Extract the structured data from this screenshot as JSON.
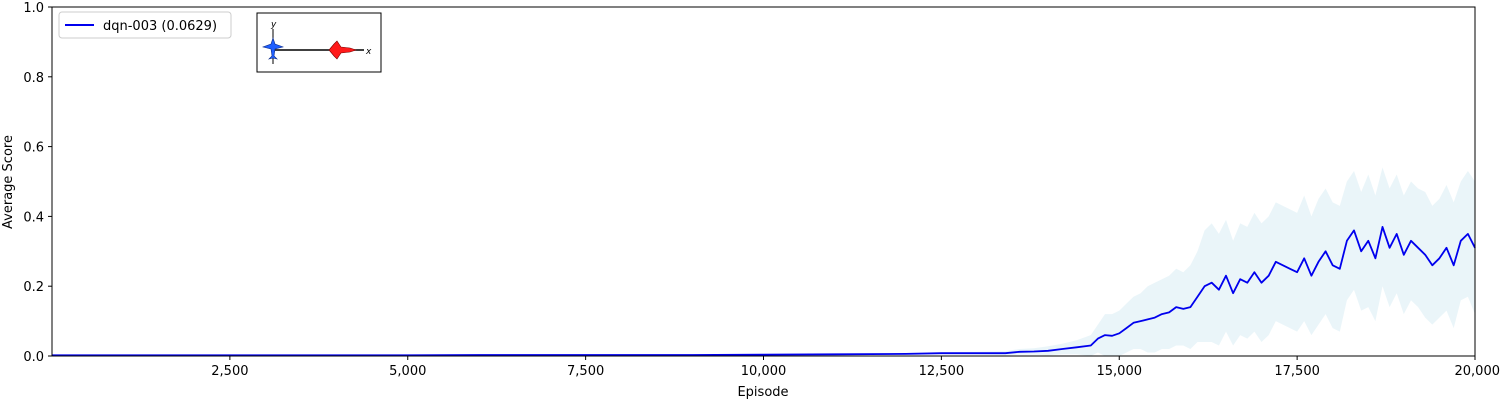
{
  "chart_data": {
    "type": "line",
    "xlabel": "Episode",
    "ylabel": "Average Score",
    "xlim": [
      0,
      20000
    ],
    "ylim": [
      0,
      1.0
    ],
    "x_ticks": [
      2500,
      5000,
      7500,
      10000,
      12500,
      15000,
      17500,
      20000
    ],
    "x_tick_labels": [
      "2,500",
      "5,000",
      "7,500",
      "10,000",
      "12,500",
      "15,000",
      "17,500",
      "20,000"
    ],
    "y_ticks": [
      0.0,
      0.2,
      0.4,
      0.6,
      0.8,
      1.0
    ],
    "y_tick_labels": [
      "0.0",
      "0.2",
      "0.4",
      "0.6",
      "0.8",
      "1.0"
    ],
    "grid": false,
    "legend_position": "top-left",
    "series": [
      {
        "name": "dqn-003 (0.0629)",
        "color": "#0000ee",
        "band_color": "#add8e6",
        "x": [
          0,
          1000,
          2000,
          3000,
          4000,
          5000,
          6000,
          7000,
          8000,
          9000,
          10000,
          11000,
          12000,
          12500,
          13000,
          13400,
          13600,
          13800,
          14000,
          14200,
          14400,
          14600,
          14700,
          14800,
          14900,
          15000,
          15100,
          15200,
          15300,
          15400,
          15500,
          15600,
          15700,
          15800,
          15900,
          16000,
          16100,
          16200,
          16300,
          16400,
          16500,
          16600,
          16700,
          16800,
          16900,
          17000,
          17100,
          17200,
          17300,
          17400,
          17500,
          17600,
          17700,
          17800,
          17900,
          18000,
          18100,
          18200,
          18300,
          18400,
          18500,
          18600,
          18700,
          18800,
          18900,
          19000,
          19100,
          19200,
          19300,
          19400,
          19500,
          19600,
          19700,
          19800,
          19900,
          20000
        ],
        "y": [
          0.002,
          0.002,
          0.002,
          0.002,
          0.002,
          0.002,
          0.003,
          0.003,
          0.003,
          0.003,
          0.004,
          0.005,
          0.006,
          0.008,
          0.008,
          0.008,
          0.012,
          0.013,
          0.015,
          0.02,
          0.025,
          0.03,
          0.05,
          0.06,
          0.058,
          0.065,
          0.08,
          0.095,
          0.1,
          0.105,
          0.11,
          0.12,
          0.125,
          0.14,
          0.135,
          0.14,
          0.17,
          0.2,
          0.21,
          0.19,
          0.23,
          0.18,
          0.22,
          0.21,
          0.24,
          0.21,
          0.23,
          0.27,
          0.26,
          0.25,
          0.24,
          0.28,
          0.23,
          0.27,
          0.3,
          0.26,
          0.25,
          0.33,
          0.36,
          0.3,
          0.33,
          0.28,
          0.37,
          0.31,
          0.35,
          0.29,
          0.33,
          0.31,
          0.29,
          0.26,
          0.28,
          0.31,
          0.26,
          0.33,
          0.35,
          0.31
        ],
        "band_upper": [
          0.004,
          0.004,
          0.004,
          0.004,
          0.004,
          0.004,
          0.005,
          0.005,
          0.005,
          0.005,
          0.006,
          0.007,
          0.009,
          0.011,
          0.012,
          0.014,
          0.02,
          0.022,
          0.028,
          0.035,
          0.045,
          0.06,
          0.09,
          0.12,
          0.12,
          0.13,
          0.15,
          0.17,
          0.18,
          0.2,
          0.21,
          0.22,
          0.23,
          0.25,
          0.24,
          0.26,
          0.3,
          0.36,
          0.38,
          0.35,
          0.39,
          0.33,
          0.38,
          0.37,
          0.41,
          0.38,
          0.4,
          0.44,
          0.43,
          0.42,
          0.41,
          0.46,
          0.4,
          0.45,
          0.48,
          0.44,
          0.43,
          0.5,
          0.53,
          0.47,
          0.52,
          0.46,
          0.54,
          0.48,
          0.52,
          0.46,
          0.5,
          0.48,
          0.47,
          0.43,
          0.45,
          0.49,
          0.44,
          0.5,
          0.53,
          0.5
        ],
        "band_lower": [
          0.0,
          0.0,
          0.0,
          0.0,
          0.0,
          0.0,
          0.001,
          0.001,
          0.001,
          0.001,
          0.002,
          0.003,
          0.003,
          0.005,
          0.004,
          0.002,
          0.004,
          0.004,
          0.002,
          0.005,
          0.005,
          0.0,
          0.01,
          0.0,
          0.0,
          0.0,
          0.01,
          0.02,
          0.02,
          0.01,
          0.01,
          0.02,
          0.02,
          0.03,
          0.03,
          0.02,
          0.04,
          0.04,
          0.04,
          0.03,
          0.07,
          0.03,
          0.06,
          0.05,
          0.07,
          0.04,
          0.06,
          0.1,
          0.09,
          0.08,
          0.07,
          0.1,
          0.06,
          0.09,
          0.12,
          0.08,
          0.07,
          0.16,
          0.19,
          0.13,
          0.14,
          0.1,
          0.2,
          0.14,
          0.18,
          0.12,
          0.16,
          0.14,
          0.11,
          0.09,
          0.11,
          0.13,
          0.08,
          0.16,
          0.17,
          0.12
        ]
      }
    ]
  },
  "inset": {
    "axis_y_label": "y",
    "axis_x_label": "x",
    "agent_colors": [
      "#1f5fff",
      "#ff1a1a"
    ]
  }
}
